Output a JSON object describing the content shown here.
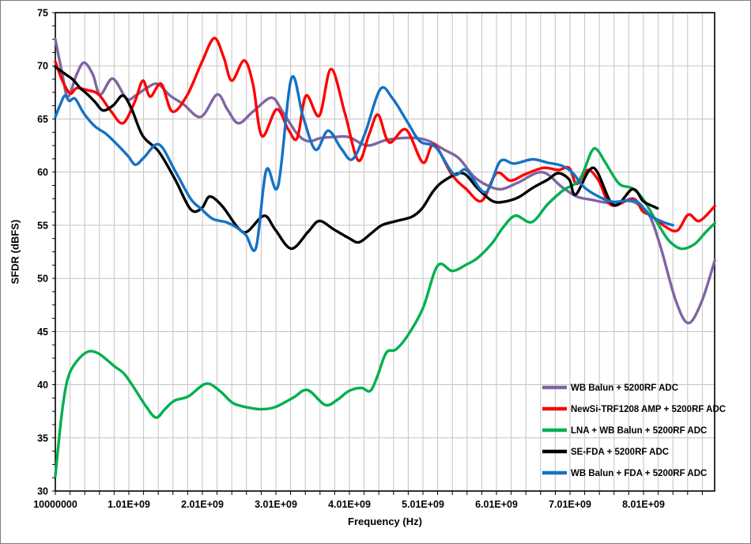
{
  "chart_data": {
    "type": "line",
    "title": "",
    "xlabel": "Frequency (Hz)",
    "ylabel": "SFDR (dBFS)",
    "x_axis": {
      "unit": "GHz",
      "min_ghz": 0.01,
      "max_ghz": 8.98,
      "major_step_ghz": 1.0,
      "minor_step_ghz": 0.2,
      "tick_labels": [
        "10000000",
        "1.01E+09",
        "2.01E+09",
        "3.01E+09",
        "4.01E+09",
        "5.01E+09",
        "6.01E+09",
        "7.01E+09",
        "8.01E+09"
      ]
    },
    "y_axis": {
      "min": 30,
      "max": 75,
      "major_step": 5,
      "tick_labels": [
        "30",
        "35",
        "40",
        "45",
        "50",
        "55",
        "60",
        "65",
        "70",
        "75"
      ]
    },
    "grid": {
      "vertical_minor_ghz": 0.2,
      "horizontal_major_db": 5,
      "color": "#c3c3c3"
    },
    "legend": {
      "position": "inside-lower-right"
    },
    "colors": {
      "purple": "#8064A2",
      "red": "#FE0000",
      "green": "#00B050",
      "black": "#000000",
      "blue": "#1572C5"
    },
    "series": [
      {
        "name": "WB Balun + 5200RF ADC",
        "color": "#8064A2",
        "points": [
          [
            0.01,
            72.5
          ],
          [
            0.1,
            69.4
          ],
          [
            0.18,
            67.1
          ],
          [
            0.3,
            69.2
          ],
          [
            0.4,
            70.3
          ],
          [
            0.52,
            69.2
          ],
          [
            0.62,
            67.3
          ],
          [
            0.79,
            68.8
          ],
          [
            0.98,
            66.9
          ],
          [
            1.1,
            67.2
          ],
          [
            1.25,
            67.9
          ],
          [
            1.4,
            68.3
          ],
          [
            1.57,
            67.2
          ],
          [
            1.75,
            66.4
          ],
          [
            1.99,
            65.2
          ],
          [
            2.21,
            67.3
          ],
          [
            2.35,
            65.9
          ],
          [
            2.5,
            64.6
          ],
          [
            2.7,
            65.7
          ],
          [
            2.95,
            67.0
          ],
          [
            3.1,
            65.7
          ],
          [
            3.3,
            63.6
          ],
          [
            3.45,
            62.9
          ],
          [
            3.62,
            63.2
          ],
          [
            3.8,
            63.3
          ],
          [
            4.0,
            63.3
          ],
          [
            4.25,
            62.5
          ],
          [
            4.5,
            63.0
          ],
          [
            4.72,
            63.2
          ],
          [
            4.92,
            63.2
          ],
          [
            5.1,
            62.9
          ],
          [
            5.3,
            62.1
          ],
          [
            5.5,
            61.3
          ],
          [
            5.7,
            59.6
          ],
          [
            5.9,
            58.7
          ],
          [
            6.08,
            58.4
          ],
          [
            6.3,
            59.0
          ],
          [
            6.63,
            60.0
          ],
          [
            6.9,
            58.6
          ],
          [
            7.1,
            57.7
          ],
          [
            7.3,
            57.4
          ],
          [
            7.55,
            57.1
          ],
          [
            7.8,
            57.3
          ],
          [
            7.95,
            56.9
          ],
          [
            8.1,
            55.8
          ],
          [
            8.25,
            52.8
          ],
          [
            8.45,
            47.9
          ],
          [
            8.62,
            45.8
          ],
          [
            8.8,
            47.8
          ],
          [
            8.98,
            51.7
          ]
        ]
      },
      {
        "name": "NewSi-TRF1208 AMP + 5200RF ADC",
        "color": "#FE0000",
        "points": [
          [
            0.01,
            70.4
          ],
          [
            0.1,
            68.7
          ],
          [
            0.21,
            67.4
          ],
          [
            0.3,
            67.9
          ],
          [
            0.45,
            67.7
          ],
          [
            0.6,
            67.3
          ],
          [
            0.77,
            65.7
          ],
          [
            0.93,
            64.6
          ],
          [
            1.09,
            66.6
          ],
          [
            1.2,
            68.6
          ],
          [
            1.3,
            67.1
          ],
          [
            1.45,
            68.3
          ],
          [
            1.6,
            65.7
          ],
          [
            1.8,
            67.2
          ],
          [
            2.0,
            70.3
          ],
          [
            2.17,
            72.6
          ],
          [
            2.3,
            70.8
          ],
          [
            2.41,
            68.6
          ],
          [
            2.58,
            70.5
          ],
          [
            2.7,
            68.2
          ],
          [
            2.82,
            63.4
          ],
          [
            3.02,
            65.9
          ],
          [
            3.18,
            64.0
          ],
          [
            3.3,
            63.2
          ],
          [
            3.42,
            67.2
          ],
          [
            3.6,
            65.3
          ],
          [
            3.76,
            69.7
          ],
          [
            3.95,
            65.5
          ],
          [
            4.13,
            61.1
          ],
          [
            4.28,
            63.6
          ],
          [
            4.4,
            65.4
          ],
          [
            4.55,
            62.8
          ],
          [
            4.78,
            64.0
          ],
          [
            5.01,
            60.9
          ],
          [
            5.16,
            62.6
          ],
          [
            5.4,
            59.8
          ],
          [
            5.6,
            58.4
          ],
          [
            5.81,
            57.3
          ],
          [
            6.01,
            59.9
          ],
          [
            6.2,
            59.2
          ],
          [
            6.4,
            59.8
          ],
          [
            6.65,
            60.4
          ],
          [
            6.85,
            60.2
          ],
          [
            7.0,
            60.4
          ],
          [
            7.1,
            58.9
          ],
          [
            7.25,
            60.2
          ],
          [
            7.4,
            59.2
          ],
          [
            7.57,
            56.9
          ],
          [
            7.87,
            57.5
          ],
          [
            8.0,
            56.3
          ],
          [
            8.12,
            55.9
          ],
          [
            8.3,
            54.9
          ],
          [
            8.47,
            54.5
          ],
          [
            8.62,
            56.0
          ],
          [
            8.77,
            55.4
          ],
          [
            8.98,
            56.8
          ]
        ]
      },
      {
        "name": "LNA + WB Balun + 5200RF ADC",
        "color": "#00B050",
        "points": [
          [
            0.01,
            31.4
          ],
          [
            0.1,
            37.4
          ],
          [
            0.18,
            40.6
          ],
          [
            0.3,
            42.2
          ],
          [
            0.45,
            43.1
          ],
          [
            0.58,
            43.0
          ],
          [
            0.7,
            42.4
          ],
          [
            0.82,
            41.7
          ],
          [
            0.95,
            41.0
          ],
          [
            1.1,
            39.5
          ],
          [
            1.25,
            37.9
          ],
          [
            1.38,
            36.9
          ],
          [
            1.5,
            37.7
          ],
          [
            1.63,
            38.5
          ],
          [
            1.82,
            38.9
          ],
          [
            2.06,
            40.1
          ],
          [
            2.25,
            39.4
          ],
          [
            2.42,
            38.3
          ],
          [
            2.6,
            37.9
          ],
          [
            2.8,
            37.7
          ],
          [
            3.0,
            37.9
          ],
          [
            3.25,
            38.8
          ],
          [
            3.44,
            39.5
          ],
          [
            3.68,
            38.1
          ],
          [
            3.85,
            38.6
          ],
          [
            4.0,
            39.4
          ],
          [
            4.17,
            39.7
          ],
          [
            4.29,
            39.4
          ],
          [
            4.38,
            40.6
          ],
          [
            4.51,
            43.0
          ],
          [
            4.64,
            43.3
          ],
          [
            4.8,
            44.6
          ],
          [
            5.01,
            47.2
          ],
          [
            5.21,
            51.2
          ],
          [
            5.41,
            50.7
          ],
          [
            5.6,
            51.3
          ],
          [
            5.75,
            51.9
          ],
          [
            5.95,
            53.3
          ],
          [
            6.1,
            54.8
          ],
          [
            6.27,
            55.9
          ],
          [
            6.49,
            55.3
          ],
          [
            6.71,
            57.0
          ],
          [
            6.92,
            58.3
          ],
          [
            7.14,
            59.3
          ],
          [
            7.3,
            61.9
          ],
          [
            7.38,
            62.1
          ],
          [
            7.5,
            60.8
          ],
          [
            7.68,
            58.9
          ],
          [
            7.85,
            58.5
          ],
          [
            8.0,
            57.5
          ],
          [
            8.2,
            55.2
          ],
          [
            8.35,
            53.6
          ],
          [
            8.52,
            52.8
          ],
          [
            8.7,
            53.2
          ],
          [
            8.85,
            54.3
          ],
          [
            8.98,
            55.2
          ]
        ]
      },
      {
        "name": "SE-FDA + 5200RF ADC",
        "color": "#000000",
        "points": [
          [
            0.01,
            69.9
          ],
          [
            0.15,
            69.2
          ],
          [
            0.25,
            68.7
          ],
          [
            0.35,
            67.9
          ],
          [
            0.45,
            67.3
          ],
          [
            0.55,
            66.6
          ],
          [
            0.66,
            65.8
          ],
          [
            0.8,
            66.3
          ],
          [
            0.93,
            67.2
          ],
          [
            1.05,
            65.9
          ],
          [
            1.2,
            63.4
          ],
          [
            1.42,
            61.9
          ],
          [
            1.64,
            59.3
          ],
          [
            1.85,
            56.5
          ],
          [
            2.0,
            56.6
          ],
          [
            2.11,
            57.7
          ],
          [
            2.28,
            56.8
          ],
          [
            2.49,
            54.8
          ],
          [
            2.62,
            54.4
          ],
          [
            2.85,
            55.9
          ],
          [
            3.0,
            54.6
          ],
          [
            3.22,
            52.8
          ],
          [
            3.45,
            54.4
          ],
          [
            3.6,
            55.4
          ],
          [
            3.8,
            54.6
          ],
          [
            4.0,
            53.8
          ],
          [
            4.14,
            53.4
          ],
          [
            4.3,
            54.2
          ],
          [
            4.45,
            55.0
          ],
          [
            4.65,
            55.4
          ],
          [
            4.86,
            55.8
          ],
          [
            5.0,
            56.6
          ],
          [
            5.15,
            58.2
          ],
          [
            5.3,
            59.2
          ],
          [
            5.55,
            59.9
          ],
          [
            5.75,
            58.5
          ],
          [
            5.95,
            57.3
          ],
          [
            6.1,
            57.2
          ],
          [
            6.3,
            57.6
          ],
          [
            6.5,
            58.5
          ],
          [
            6.71,
            59.3
          ],
          [
            6.85,
            59.9
          ],
          [
            7.0,
            59.3
          ],
          [
            7.09,
            57.9
          ],
          [
            7.33,
            60.4
          ],
          [
            7.6,
            56.9
          ],
          [
            7.86,
            58.4
          ],
          [
            8.0,
            57.3
          ],
          [
            8.1,
            56.9
          ],
          [
            8.2,
            56.6
          ]
        ]
      },
      {
        "name": "WB Balun + FDA + 5200RF ADC",
        "color": "#1572C5",
        "points": [
          [
            0.01,
            65.2
          ],
          [
            0.08,
            66.4
          ],
          [
            0.14,
            67.2
          ],
          [
            0.2,
            66.7
          ],
          [
            0.28,
            66.9
          ],
          [
            0.4,
            65.5
          ],
          [
            0.55,
            64.3
          ],
          [
            0.7,
            63.6
          ],
          [
            0.85,
            62.6
          ],
          [
            1.0,
            61.5
          ],
          [
            1.1,
            60.7
          ],
          [
            1.22,
            61.4
          ],
          [
            1.42,
            62.6
          ],
          [
            1.64,
            60.1
          ],
          [
            1.85,
            57.5
          ],
          [
            2.0,
            56.5
          ],
          [
            2.15,
            55.6
          ],
          [
            2.33,
            55.3
          ],
          [
            2.45,
            54.9
          ],
          [
            2.6,
            54.1
          ],
          [
            2.74,
            52.9
          ],
          [
            2.88,
            60.2
          ],
          [
            3.04,
            58.7
          ],
          [
            3.22,
            68.8
          ],
          [
            3.38,
            65.2
          ],
          [
            3.55,
            62.1
          ],
          [
            3.72,
            63.9
          ],
          [
            3.9,
            62.2
          ],
          [
            4.05,
            61.2
          ],
          [
            4.22,
            63.6
          ],
          [
            4.43,
            67.8
          ],
          [
            4.6,
            66.9
          ],
          [
            4.8,
            64.7
          ],
          [
            4.97,
            62.9
          ],
          [
            5.19,
            62.3
          ],
          [
            5.43,
            59.8
          ],
          [
            5.6,
            60.2
          ],
          [
            5.86,
            58.1
          ],
          [
            6.06,
            61.0
          ],
          [
            6.25,
            60.8
          ],
          [
            6.5,
            61.2
          ],
          [
            6.7,
            60.9
          ],
          [
            6.9,
            60.6
          ],
          [
            7.05,
            59.9
          ],
          [
            7.2,
            58.6
          ],
          [
            7.4,
            57.7
          ],
          [
            7.6,
            57.2
          ],
          [
            7.9,
            57.3
          ],
          [
            8.1,
            55.9
          ],
          [
            8.28,
            55.3
          ],
          [
            8.41,
            55.0
          ]
        ]
      }
    ]
  }
}
